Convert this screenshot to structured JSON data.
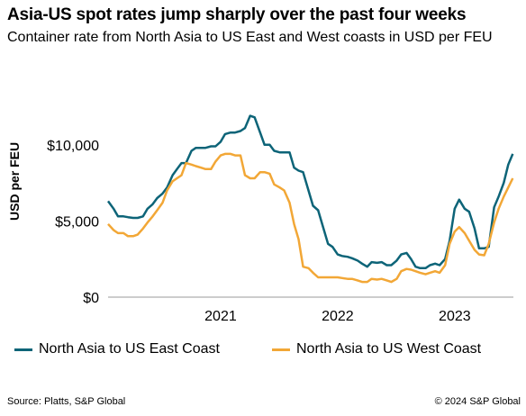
{
  "title": "Asia-US spot rates jump sharply over the past four weeks",
  "subtitle": "Container rate from North Asia to US East and West coasts in USD per FEU",
  "source": "Source: Platts, S&P Global",
  "copyright": "© 2024 S&P Global",
  "colors": {
    "east": "#0d6478",
    "west": "#f2a736",
    "axis": "#9a9a9a"
  },
  "chart_data": {
    "type": "line",
    "title": "Asia-US spot rates jump sharply over the past four weeks",
    "ylabel": "USD per FEU",
    "xlabel": "",
    "ylim": [
      0,
      13000
    ],
    "xlim": [
      "2020-07-15",
      "2023-12-31"
    ],
    "yticks": [
      0,
      5000,
      10000
    ],
    "ytick_labels": [
      "$0",
      "$5,000",
      "$10,000"
    ],
    "xticks": [
      "2021-07-01",
      "2022-07-01",
      "2023-07-01"
    ],
    "xtick_labels": [
      "2021",
      "2022",
      "2023"
    ],
    "grid": false,
    "legend_position": "bottom",
    "series": [
      {
        "name": "North Asia to US East Coast",
        "color_key": "east",
        "x": [
          "2020-07-15",
          "2020-08-01",
          "2020-08-15",
          "2020-09-01",
          "2020-09-15",
          "2020-10-01",
          "2020-10-15",
          "2020-11-01",
          "2020-11-15",
          "2020-12-01",
          "2020-12-15",
          "2021-01-01",
          "2021-01-15",
          "2021-02-01",
          "2021-02-15",
          "2021-03-01",
          "2021-03-15",
          "2021-04-01",
          "2021-04-15",
          "2021-05-01",
          "2021-05-15",
          "2021-06-01",
          "2021-06-15",
          "2021-07-01",
          "2021-07-15",
          "2021-08-01",
          "2021-08-15",
          "2021-09-01",
          "2021-09-15",
          "2021-10-01",
          "2021-10-15",
          "2021-11-01",
          "2021-11-15",
          "2021-12-01",
          "2021-12-15",
          "2022-01-01",
          "2022-01-15",
          "2022-02-01",
          "2022-02-15",
          "2022-03-01",
          "2022-03-15",
          "2022-04-01",
          "2022-04-15",
          "2022-05-01",
          "2022-05-15",
          "2022-06-01",
          "2022-06-15",
          "2022-07-01",
          "2022-07-15",
          "2022-08-01",
          "2022-08-15",
          "2022-09-01",
          "2022-09-15",
          "2022-10-01",
          "2022-10-15",
          "2022-11-01",
          "2022-11-15",
          "2022-12-01",
          "2022-12-15",
          "2023-01-01",
          "2023-01-15",
          "2023-02-01",
          "2023-02-15",
          "2023-03-01",
          "2023-03-15",
          "2023-04-01",
          "2023-04-15",
          "2023-05-01",
          "2023-05-15",
          "2023-06-01",
          "2023-06-15",
          "2023-07-01",
          "2023-07-15",
          "2023-08-01",
          "2023-08-15",
          "2023-09-01",
          "2023-09-15",
          "2023-10-01",
          "2023-10-15",
          "2023-11-01",
          "2023-11-15",
          "2023-12-01",
          "2023-12-15",
          "2023-12-29"
        ],
        "values": [
          6300,
          5800,
          5300,
          5300,
          5250,
          5200,
          5200,
          5300,
          5800,
          6100,
          6500,
          6800,
          7200,
          8000,
          8400,
          8800,
          8800,
          9600,
          9800,
          9800,
          9800,
          9900,
          9900,
          10200,
          10700,
          10800,
          10800,
          10900,
          11100,
          11900,
          11800,
          10800,
          10000,
          10000,
          9600,
          9500,
          9500,
          9500,
          8500,
          8300,
          8200,
          7000,
          6000,
          5700,
          4700,
          3500,
          3300,
          2800,
          2700,
          2650,
          2550,
          2400,
          2200,
          2000,
          2300,
          2250,
          2300,
          2100,
          2100,
          2400,
          2800,
          2900,
          2500,
          2000,
          1900,
          1900,
          2100,
          2200,
          2100,
          2500,
          3700,
          5800,
          6400,
          5800,
          5600,
          4500,
          3200,
          3200,
          3300,
          5900,
          6600,
          7500,
          8700,
          9400
        ]
      },
      {
        "name": "North Asia to US West Coast",
        "color_key": "west",
        "x": [
          "2020-07-15",
          "2020-08-01",
          "2020-08-15",
          "2020-09-01",
          "2020-09-15",
          "2020-10-01",
          "2020-10-15",
          "2020-11-01",
          "2020-11-15",
          "2020-12-01",
          "2020-12-15",
          "2021-01-01",
          "2021-01-15",
          "2021-02-01",
          "2021-02-15",
          "2021-03-01",
          "2021-03-15",
          "2021-04-01",
          "2021-04-15",
          "2021-05-01",
          "2021-05-15",
          "2021-06-01",
          "2021-06-15",
          "2021-07-01",
          "2021-07-15",
          "2021-08-01",
          "2021-08-15",
          "2021-09-01",
          "2021-09-15",
          "2021-10-01",
          "2021-10-15",
          "2021-11-01",
          "2021-11-15",
          "2021-12-01",
          "2021-12-15",
          "2022-01-01",
          "2022-01-15",
          "2022-02-01",
          "2022-02-15",
          "2022-03-01",
          "2022-03-15",
          "2022-04-01",
          "2022-04-15",
          "2022-05-01",
          "2022-05-15",
          "2022-06-01",
          "2022-06-15",
          "2022-07-01",
          "2022-07-15",
          "2022-08-01",
          "2022-08-15",
          "2022-09-01",
          "2022-09-15",
          "2022-10-01",
          "2022-10-15",
          "2022-11-01",
          "2022-11-15",
          "2022-12-01",
          "2022-12-15",
          "2023-01-01",
          "2023-01-15",
          "2023-02-01",
          "2023-02-15",
          "2023-03-01",
          "2023-03-15",
          "2023-04-01",
          "2023-04-15",
          "2023-05-01",
          "2023-05-15",
          "2023-06-01",
          "2023-06-15",
          "2023-07-01",
          "2023-07-15",
          "2023-08-01",
          "2023-08-15",
          "2023-09-01",
          "2023-09-15",
          "2023-10-01",
          "2023-10-15",
          "2023-11-01",
          "2023-11-15",
          "2023-12-01",
          "2023-12-15",
          "2023-12-29"
        ],
        "values": [
          4800,
          4400,
          4200,
          4200,
          4000,
          4000,
          4100,
          4500,
          4900,
          5300,
          5700,
          6200,
          7000,
          7600,
          7800,
          8000,
          8800,
          8700,
          8600,
          8500,
          8400,
          8400,
          8900,
          9300,
          9400,
          9400,
          9300,
          9300,
          8000,
          7800,
          7800,
          8200,
          8200,
          8100,
          7400,
          7200,
          7000,
          6200,
          4800,
          3800,
          2000,
          1900,
          1600,
          1300,
          1300,
          1300,
          1300,
          1300,
          1250,
          1200,
          1200,
          1100,
          1000,
          1000,
          1200,
          1150,
          1200,
          1100,
          1000,
          1200,
          1700,
          1850,
          1800,
          1700,
          1600,
          1500,
          1600,
          1700,
          1600,
          2100,
          3500,
          4300,
          4600,
          4200,
          3700,
          3100,
          2800,
          2750,
          3500,
          4900,
          5800,
          6600,
          7200,
          7800
        ]
      }
    ]
  }
}
